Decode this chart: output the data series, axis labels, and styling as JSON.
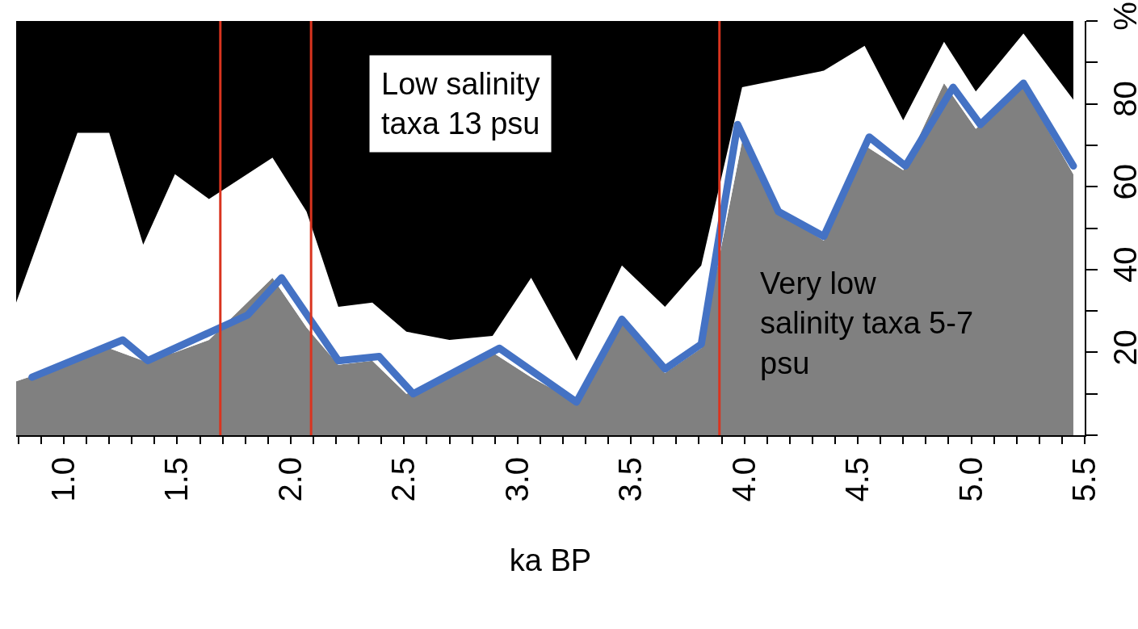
{
  "chart_data": {
    "type": "area",
    "stacked": true,
    "xlabel": "ka BP",
    "x": [
      0.79,
      1.06,
      1.2,
      1.35,
      1.49,
      1.64,
      1.92,
      2.07,
      2.21,
      2.36,
      2.51,
      2.7,
      2.89,
      3.06,
      3.26,
      3.46,
      3.65,
      3.81,
      3.99,
      4.17,
      4.35,
      4.53,
      4.7,
      4.88,
      5.02,
      5.23,
      5.45
    ],
    "series": [
      {
        "color": "#808080",
        "values": [
          13,
          18,
          21,
          18,
          20,
          23,
          38,
          26,
          17,
          18,
          10,
          14,
          20,
          14,
          8,
          27,
          15,
          21,
          71,
          53,
          47,
          70,
          64,
          85,
          74,
          84,
          63
        ]
      },
      {
        "color": "#ffffff",
        "values": [
          19,
          55,
          52,
          28,
          43,
          34,
          29,
          28,
          14,
          14,
          15,
          9,
          4,
          24,
          10,
          14,
          16,
          20,
          13,
          33,
          41,
          24,
          12,
          10,
          9,
          13,
          18
        ]
      },
      {
        "color": "#000000",
        "values": [
          68,
          27,
          27,
          54,
          37,
          43,
          33,
          46,
          69,
          68,
          75,
          77,
          76,
          62,
          82,
          59,
          69,
          59,
          16,
          14,
          12,
          6,
          24,
          5,
          17,
          3,
          19
        ]
      },
      {
        "type": "line",
        "color": "#4472c4",
        "x": [
          0.86,
          1.26,
          1.37,
          1.81,
          1.96,
          2.21,
          2.39,
          2.54,
          2.92,
          3.26,
          3.46,
          3.65,
          3.81,
          3.97,
          4.15,
          4.35,
          4.55,
          4.71,
          4.92,
          5.04,
          5.23,
          5.45
        ],
        "values": [
          14,
          23,
          18,
          29,
          38,
          18,
          19,
          10,
          21,
          8,
          28,
          16,
          22,
          75,
          54,
          48,
          72,
          65,
          84,
          75,
          85,
          65
        ]
      }
    ],
    "xlim": [
      0.79,
      5.5
    ],
    "xticks": [
      {
        "value": 0.8,
        "label": null
      },
      {
        "value": 0.9,
        "label": null
      },
      {
        "value": 1.0,
        "label": "1.0"
      },
      {
        "value": 1.1,
        "label": null
      },
      {
        "value": 1.2,
        "label": null
      },
      {
        "value": 1.3,
        "label": null
      },
      {
        "value": 1.4,
        "label": null
      },
      {
        "value": 1.5,
        "label": "1.5"
      },
      {
        "value": 1.6,
        "label": null
      },
      {
        "value": 1.7,
        "label": null
      },
      {
        "value": 1.8,
        "label": null
      },
      {
        "value": 1.9,
        "label": null
      },
      {
        "value": 2.0,
        "label": "2.0"
      },
      {
        "value": 2.1,
        "label": null
      },
      {
        "value": 2.2,
        "label": null
      },
      {
        "value": 2.3,
        "label": null
      },
      {
        "value": 2.4,
        "label": null
      },
      {
        "value": 2.5,
        "label": "2.5"
      },
      {
        "value": 2.6,
        "label": null
      },
      {
        "value": 2.7,
        "label": null
      },
      {
        "value": 2.8,
        "label": null
      },
      {
        "value": 2.9,
        "label": null
      },
      {
        "value": 3.0,
        "label": "3.0"
      },
      {
        "value": 3.1,
        "label": null
      },
      {
        "value": 3.2,
        "label": null
      },
      {
        "value": 3.3,
        "label": null
      },
      {
        "value": 3.4,
        "label": null
      },
      {
        "value": 3.5,
        "label": "3.5"
      },
      {
        "value": 3.6,
        "label": null
      },
      {
        "value": 3.7,
        "label": null
      },
      {
        "value": 3.8,
        "label": null
      },
      {
        "value": 3.9,
        "label": null
      },
      {
        "value": 4.0,
        "label": "4.0"
      },
      {
        "value": 4.1,
        "label": null
      },
      {
        "value": 4.2,
        "label": null
      },
      {
        "value": 4.3,
        "label": null
      },
      {
        "value": 4.4,
        "label": null
      },
      {
        "value": 4.5,
        "label": "4.5"
      },
      {
        "value": 4.6,
        "label": null
      },
      {
        "value": 4.7,
        "label": null
      },
      {
        "value": 4.8,
        "label": null
      },
      {
        "value": 4.9,
        "label": null
      },
      {
        "value": 5.0,
        "label": "5.0"
      },
      {
        "value": 5.1,
        "label": null
      },
      {
        "value": 5.2,
        "label": null
      },
      {
        "value": 5.3,
        "label": null
      },
      {
        "value": 5.4,
        "label": null
      },
      {
        "value": 5.5,
        "label": "5.5"
      }
    ],
    "ylim": [
      0,
      100
    ],
    "yticks": [
      {
        "value": 0,
        "label": null
      },
      {
        "value": 10,
        "label": null
      },
      20,
      {
        "value": 30,
        "label": null
      },
      40,
      {
        "value": 50,
        "label": null
      },
      60,
      {
        "value": 70,
        "label": null
      },
      80,
      {
        "value": 90,
        "label": null
      },
      {
        "value": 100,
        "label": "%"
      }
    ],
    "ref_lines": [
      {
        "axis": "x",
        "value": 1.69,
        "color": "#d9341f"
      },
      {
        "axis": "x",
        "value": 2.09,
        "color": "#d9341f"
      },
      {
        "axis": "x",
        "value": 3.89,
        "color": "#d9341f"
      }
    ],
    "annotations": [
      "Low salinity\ntaxa 13 psu",
      "Very low\nsalinity taxa 5-7\npsu"
    ]
  }
}
